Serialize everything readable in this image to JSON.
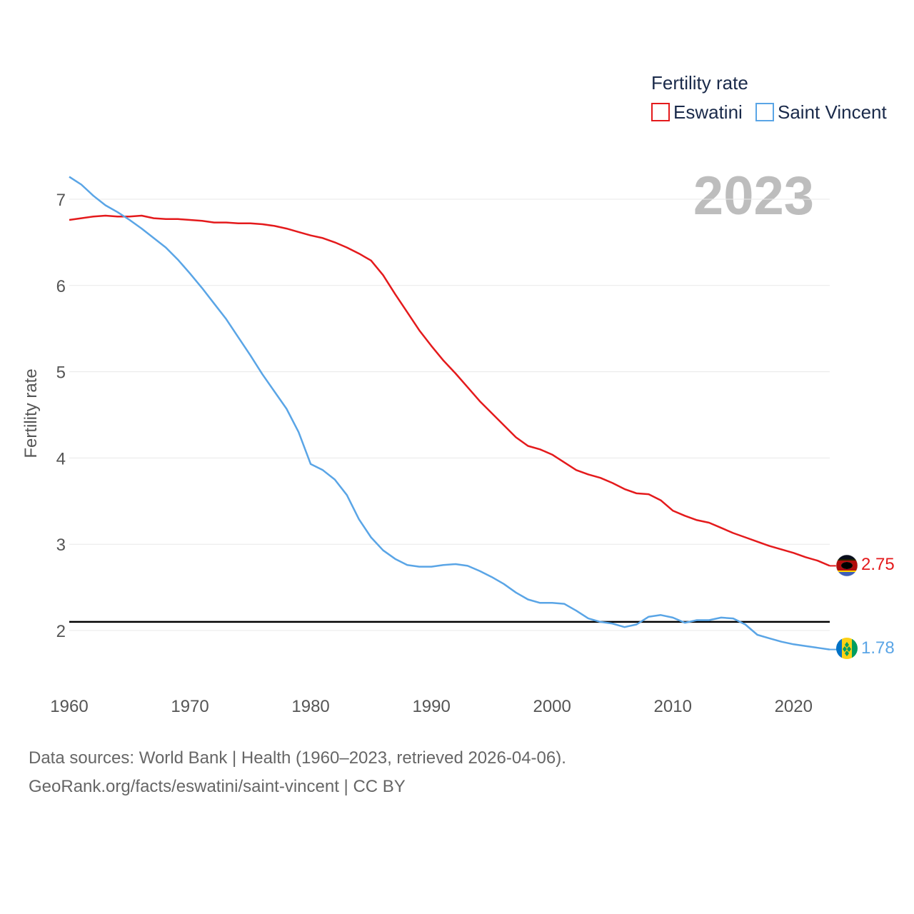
{
  "chart_data": {
    "type": "line",
    "ylabel": "Fertility rate",
    "xlabel": "",
    "legend_title": "Fertility rate",
    "year_label": "2023",
    "xlim": [
      1960,
      2023
    ],
    "ylim": [
      1.5,
      7.3
    ],
    "x_ticks": [
      "1960",
      "1970",
      "1980",
      "1990",
      "2000",
      "2010",
      "2020"
    ],
    "y_ticks": [
      "2",
      "3",
      "4",
      "5",
      "6",
      "7"
    ],
    "reference_line": 2.1,
    "x": [
      1960,
      1961,
      1962,
      1963,
      1964,
      1965,
      1966,
      1967,
      1968,
      1969,
      1970,
      1971,
      1972,
      1973,
      1974,
      1975,
      1976,
      1977,
      1978,
      1979,
      1980,
      1981,
      1982,
      1983,
      1984,
      1985,
      1986,
      1987,
      1988,
      1989,
      1990,
      1991,
      1992,
      1993,
      1994,
      1995,
      1996,
      1997,
      1998,
      1999,
      2000,
      2001,
      2002,
      2003,
      2004,
      2005,
      2006,
      2007,
      2008,
      2009,
      2010,
      2011,
      2012,
      2013,
      2014,
      2015,
      2016,
      2017,
      2018,
      2019,
      2020,
      2021,
      2022,
      2023
    ],
    "series": [
      {
        "name": "Eswatini",
        "color": "#e41a1c",
        "end_label": "2.75",
        "values": [
          6.76,
          6.78,
          6.8,
          6.81,
          6.8,
          6.8,
          6.81,
          6.78,
          6.77,
          6.77,
          6.76,
          6.75,
          6.73,
          6.73,
          6.72,
          6.72,
          6.71,
          6.69,
          6.66,
          6.62,
          6.58,
          6.55,
          6.5,
          6.44,
          6.37,
          6.29,
          6.12,
          5.9,
          5.69,
          5.48,
          5.3,
          5.13,
          4.98,
          4.82,
          4.66,
          4.52,
          4.38,
          4.24,
          4.14,
          4.1,
          4.04,
          3.95,
          3.86,
          3.81,
          3.77,
          3.71,
          3.64,
          3.59,
          3.58,
          3.51,
          3.39,
          3.33,
          3.28,
          3.25,
          3.19,
          3.13,
          3.08,
          3.03,
          2.98,
          2.94,
          2.9,
          2.85,
          2.81,
          2.75
        ]
      },
      {
        "name": "Saint Vincent",
        "color": "#5aa5e6",
        "end_label": "1.78",
        "values": [
          7.26,
          7.17,
          7.04,
          6.93,
          6.85,
          6.76,
          6.66,
          6.55,
          6.44,
          6.3,
          6.14,
          5.97,
          5.79,
          5.61,
          5.4,
          5.19,
          4.97,
          4.77,
          4.57,
          4.3,
          3.93,
          3.86,
          3.75,
          3.57,
          3.29,
          3.08,
          2.93,
          2.83,
          2.76,
          2.74,
          2.74,
          2.76,
          2.77,
          2.75,
          2.69,
          2.62,
          2.54,
          2.44,
          2.36,
          2.32,
          2.32,
          2.31,
          2.23,
          2.14,
          2.1,
          2.08,
          2.04,
          2.07,
          2.16,
          2.18,
          2.15,
          2.09,
          2.12,
          2.12,
          2.15,
          2.14,
          2.07,
          1.95,
          1.91,
          1.87,
          1.84,
          1.82,
          1.8,
          1.78
        ]
      }
    ]
  },
  "footer": {
    "line1": "Data sources: World Bank | Health (1960–2023, retrieved 2026-04-06).",
    "line2": "GeoRank.org/facts/eswatini/saint-vincent | CC BY"
  }
}
